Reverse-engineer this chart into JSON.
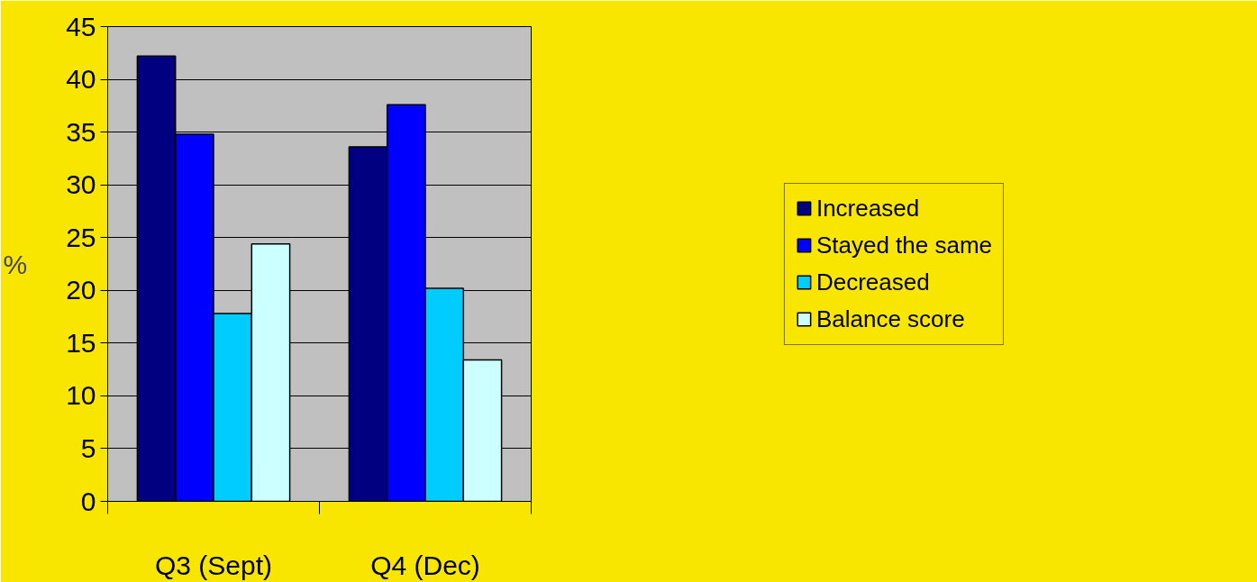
{
  "chart_data": {
    "type": "bar",
    "ylabel": "%",
    "categories": [
      "Q3 (Sept)",
      "Q4 (Dec)"
    ],
    "series": [
      {
        "name": "Increased",
        "color": "#000080",
        "values": [
          42.2,
          33.6
        ]
      },
      {
        "name": "Stayed the same",
        "color": "#0000ff",
        "values": [
          34.8,
          37.6
        ]
      },
      {
        "name": "Decreased",
        "color": "#00ccff",
        "values": [
          17.8,
          20.2
        ]
      },
      {
        "name": "Balance score",
        "color": "#ccffff",
        "values": [
          24.4,
          13.4
        ]
      }
    ],
    "ylim": [
      0,
      45
    ],
    "yticks": [
      0,
      5,
      10,
      15,
      20,
      25,
      30,
      35,
      40,
      45
    ],
    "grid": "y",
    "legend": "right"
  }
}
